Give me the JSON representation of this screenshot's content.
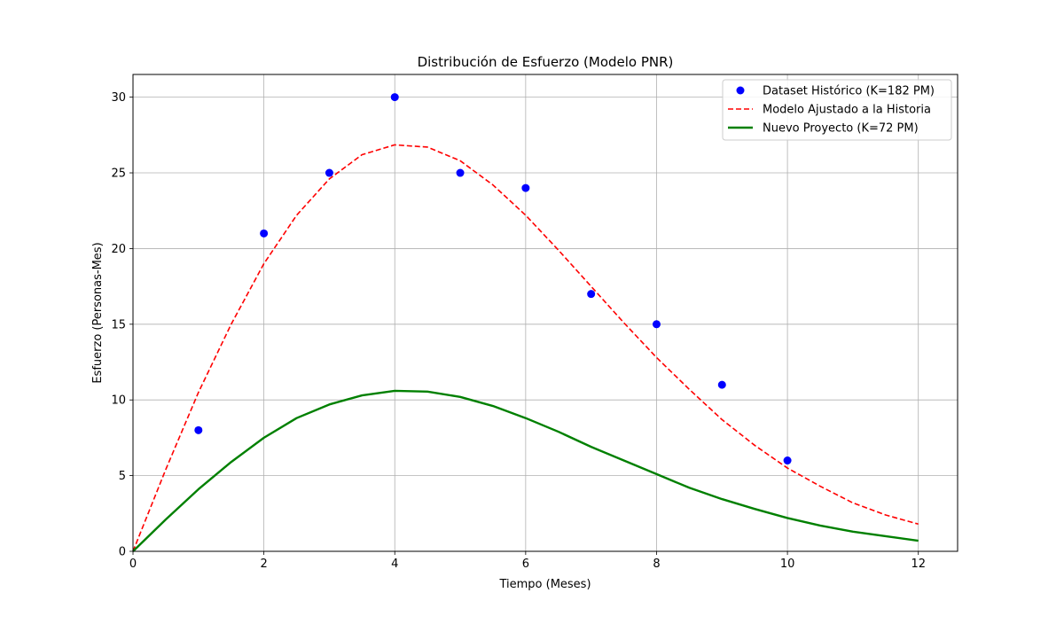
{
  "chart_data": {
    "type": "line",
    "title": "Distribución de Esfuerzo (Modelo PNR)",
    "xlabel": "Tiempo (Meses)",
    "ylabel": "Esfuerzo (Personas-Mes)",
    "xlim": [
      0,
      12.6
    ],
    "ylim": [
      0,
      31.5
    ],
    "xticks": [
      0,
      2,
      4,
      6,
      8,
      10,
      12
    ],
    "yticks": [
      0,
      5,
      10,
      15,
      20,
      25,
      30
    ],
    "grid": true,
    "legend_position": "top-right",
    "series": [
      {
        "name": "Dataset Histórico (K=182 PM)",
        "kind": "scatter",
        "color": "#0000ff",
        "x": [
          1,
          2,
          3,
          4,
          5,
          6,
          7,
          8,
          9,
          10
        ],
        "y": [
          8,
          21,
          25,
          30,
          25,
          24,
          17,
          15,
          11,
          6
        ]
      },
      {
        "name": "Modelo Ajustado a la Historia",
        "kind": "line",
        "style": "dashed",
        "color": "#ff0000",
        "x": [
          0,
          0.5,
          1,
          1.5,
          2,
          2.5,
          3,
          3.5,
          4,
          4.5,
          5,
          5.5,
          6,
          6.5,
          7,
          7.5,
          8,
          8.5,
          9,
          9.5,
          10,
          10.5,
          11,
          11.5,
          12
        ],
        "y": [
          0,
          5.4,
          10.5,
          15.0,
          19.0,
          22.2,
          24.6,
          26.2,
          26.85,
          26.7,
          25.8,
          24.2,
          22.2,
          19.9,
          17.5,
          15.1,
          12.8,
          10.7,
          8.7,
          7.0,
          5.5,
          4.3,
          3.2,
          2.4,
          1.8
        ]
      },
      {
        "name": "Nuevo Proyecto (K=72 PM)",
        "kind": "line",
        "style": "solid",
        "color": "#008000",
        "x": [
          0,
          0.5,
          1,
          1.5,
          2,
          2.5,
          3,
          3.5,
          4,
          4.5,
          5,
          5.5,
          6,
          6.5,
          7,
          7.5,
          8,
          8.5,
          9,
          9.5,
          10,
          10.5,
          11,
          11.5,
          12
        ],
        "y": [
          0,
          2.1,
          4.1,
          5.9,
          7.5,
          8.8,
          9.7,
          10.3,
          10.6,
          10.55,
          10.2,
          9.6,
          8.8,
          7.9,
          6.9,
          6.0,
          5.1,
          4.2,
          3.45,
          2.8,
          2.2,
          1.7,
          1.3,
          1.0,
          0.7
        ]
      }
    ]
  }
}
